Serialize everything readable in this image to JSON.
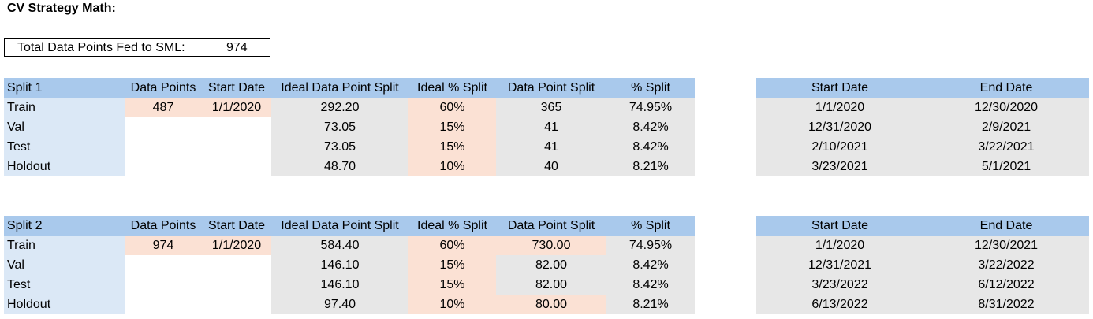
{
  "title": "CV Strategy Math:",
  "total": {
    "label": "Total Data Points Fed to SML:",
    "value": "974"
  },
  "headers": {
    "data_points": "Data Points",
    "start_date": "Start Date",
    "ideal_split": "Ideal Data Point Split",
    "ideal_pct": "Ideal % Split",
    "dp_split": "Data Point Split",
    "pct_split": "% Split",
    "range_start": "Start Date",
    "range_end": "End Date"
  },
  "tables": [
    {
      "name": "Split 1",
      "data_points": "487",
      "start_date": "1/1/2020",
      "rows": [
        {
          "label": "Train",
          "ideal": "292.20",
          "ideal_pct": "60%",
          "dp_split": "365",
          "pct": "74.95%",
          "start": "1/1/2020",
          "end": "12/30/2020"
        },
        {
          "label": "Val",
          "ideal": "73.05",
          "ideal_pct": "15%",
          "dp_split": "41",
          "pct": "8.42%",
          "start": "12/31/2020",
          "end": "2/9/2021"
        },
        {
          "label": "Test",
          "ideal": "73.05",
          "ideal_pct": "15%",
          "dp_split": "41",
          "pct": "8.42%",
          "start": "2/10/2021",
          "end": "3/22/2021"
        },
        {
          "label": "Holdout",
          "ideal": "48.70",
          "ideal_pct": "10%",
          "dp_split": "40",
          "pct": "8.21%",
          "start": "3/23/2021",
          "end": "5/1/2021"
        }
      ]
    },
    {
      "name": "Split 2",
      "data_points": "974",
      "start_date": "1/1/2020",
      "rows": [
        {
          "label": "Train",
          "ideal": "584.40",
          "ideal_pct": "60%",
          "dp_split": "730.00",
          "pct": "74.95%",
          "start": "1/1/2020",
          "end": "12/30/2021"
        },
        {
          "label": "Val",
          "ideal": "146.10",
          "ideal_pct": "15%",
          "dp_split": "82.00",
          "pct": "8.42%",
          "start": "12/31/2021",
          "end": "3/22/2022"
        },
        {
          "label": "Test",
          "ideal": "146.10",
          "ideal_pct": "15%",
          "dp_split": "82.00",
          "pct": "8.42%",
          "start": "3/23/2022",
          "end": "6/12/2022"
        },
        {
          "label": "Holdout",
          "ideal": "97.40",
          "ideal_pct": "10%",
          "dp_split": "80.00",
          "pct": "8.21%",
          "start": "6/13/2022",
          "end": "8/31/2022"
        }
      ]
    }
  ],
  "colors": {
    "header": "#a9c9ec",
    "label_fill": "#dbe8f6",
    "input_fill": "#fbe1d4",
    "calc_fill": "#e7e7e7"
  }
}
